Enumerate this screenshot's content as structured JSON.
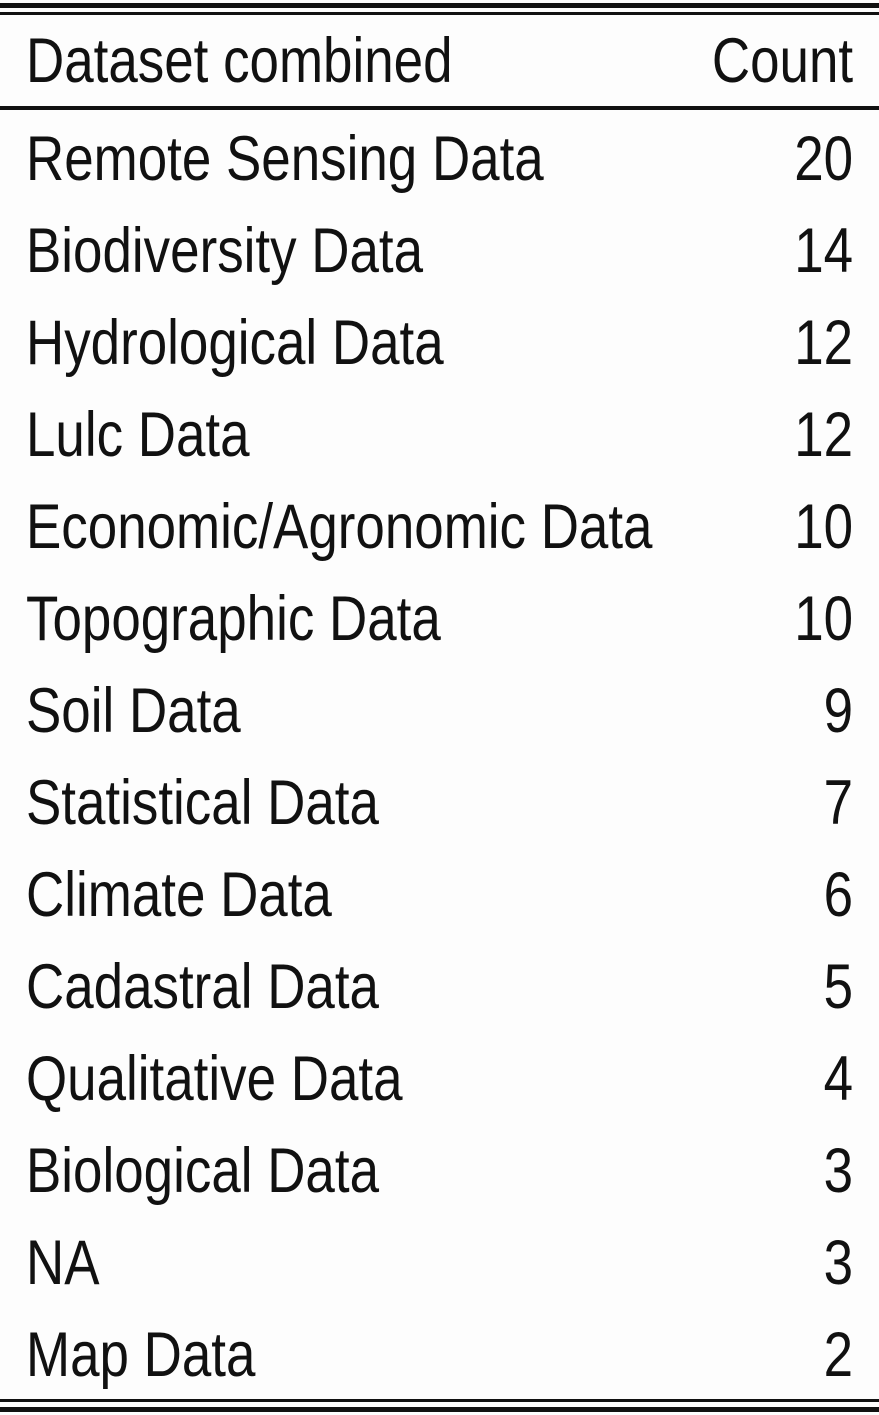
{
  "chart_data": {
    "type": "table",
    "columns": [
      "Dataset combined",
      "Count"
    ],
    "rows": [
      {
        "dataset": "Remote Sensing Data",
        "count": 20
      },
      {
        "dataset": "Biodiversity Data",
        "count": 14
      },
      {
        "dataset": "Hydrological Data",
        "count": 12
      },
      {
        "dataset": "Lulc Data",
        "count": 12
      },
      {
        "dataset": "Economic/Agronomic Data",
        "count": 10
      },
      {
        "dataset": "Topographic Data",
        "count": 10
      },
      {
        "dataset": "Soil Data",
        "count": 9
      },
      {
        "dataset": "Statistical Data",
        "count": 7
      },
      {
        "dataset": "Climate Data",
        "count": 6
      },
      {
        "dataset": "Cadastral Data",
        "count": 5
      },
      {
        "dataset": "Qualitative Data",
        "count": 4
      },
      {
        "dataset": "Biological Data",
        "count": 3
      },
      {
        "dataset": "NA",
        "count": 3
      },
      {
        "dataset": "Map Data",
        "count": 2
      }
    ]
  }
}
